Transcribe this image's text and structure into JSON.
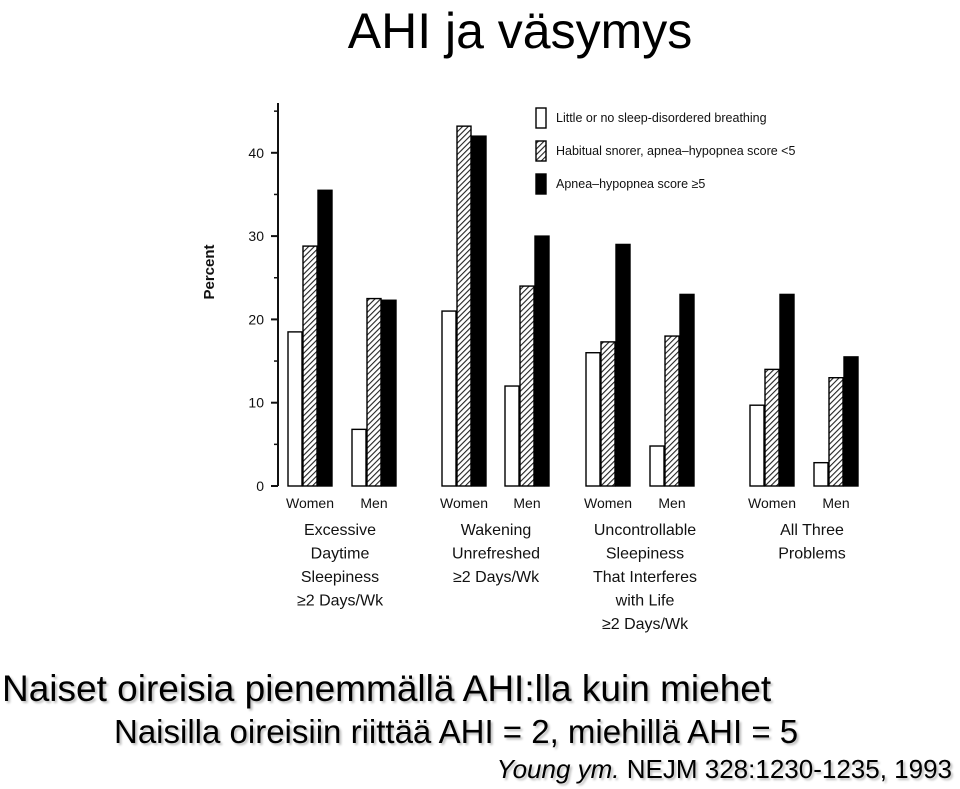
{
  "slide": {
    "title": "AHI ja väsymys",
    "headline": "Naiset oireisia pienemmällä AHI:lla kuin miehet",
    "subline": "Naisilla oireisiin riittää AHI = 2, miehillä AHI = 5",
    "citation_authors": "Young ym.",
    "citation_source": "NEJM 328:1230-1235, 1993"
  },
  "colors": {
    "none": "#ffffff",
    "habitual": "hatched",
    "apnea": "#000000"
  },
  "chart_data": {
    "type": "bar",
    "title": "",
    "xlabel": "",
    "ylabel": "Percent",
    "ylim": [
      0,
      45
    ],
    "yticks": [
      0,
      10,
      20,
      30,
      40
    ],
    "legend_position": "top-right",
    "legend": [
      "Little or no sleep-disordered breathing",
      "Habitual snorer, apnea–hypopnea score <5",
      "Apnea–hypopnea score ≥5"
    ],
    "groups": [
      {
        "label_lines": [
          "Excessive",
          "Daytime",
          "Sleepiness",
          "≥2 Days/Wk"
        ],
        "sexes": [
          "Women",
          "Men"
        ]
      },
      {
        "label_lines": [
          "Wakening",
          "Unrefreshed",
          "≥2 Days/Wk"
        ],
        "sexes": [
          "Women",
          "Men"
        ]
      },
      {
        "label_lines": [
          "Uncontrollable",
          "Sleepiness",
          "That Interferes",
          "with Life",
          "≥2 Days/Wk"
        ],
        "sexes": [
          "Women",
          "Men"
        ]
      },
      {
        "label_lines": [
          "All Three",
          "Problems"
        ],
        "sexes": [
          "Women",
          "Men"
        ]
      }
    ],
    "categories": [
      "Excessive Daytime Sleepiness ≥2 Days/Wk – Women",
      "Excessive Daytime Sleepiness ≥2 Days/Wk – Men",
      "Wakening Unrefreshed ≥2 Days/Wk – Women",
      "Wakening Unrefreshed ≥2 Days/Wk – Men",
      "Uncontrollable Sleepiness That Interferes with Life ≥2 Days/Wk – Women",
      "Uncontrollable Sleepiness That Interferes with Life ≥2 Days/Wk – Men",
      "All Three Problems – Women",
      "All Three Problems – Men"
    ],
    "series": [
      {
        "name": "Little or no sleep-disordered breathing",
        "values": [
          18.5,
          6.8,
          21.0,
          12.0,
          16.0,
          4.8,
          9.7,
          2.8
        ]
      },
      {
        "name": "Habitual snorer, apnea–hypopnea score <5",
        "values": [
          28.8,
          22.5,
          43.2,
          24.0,
          17.3,
          18.0,
          14.0,
          13.0
        ]
      },
      {
        "name": "Apnea–hypopnea score ≥5",
        "values": [
          35.5,
          22.3,
          42.0,
          30.0,
          29.0,
          23.0,
          23.0,
          15.5
        ]
      }
    ]
  }
}
